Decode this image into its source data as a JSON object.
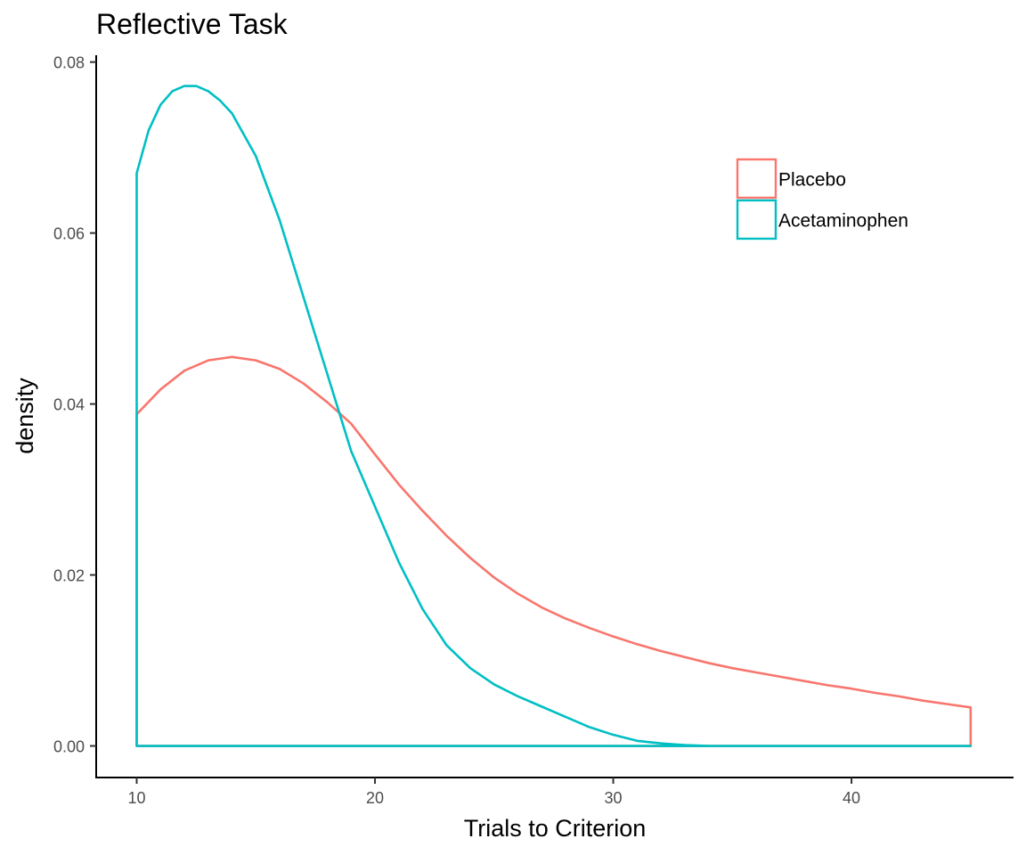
{
  "chart_data": {
    "type": "area",
    "subtype": "density",
    "title": "Reflective Task",
    "xlabel": "Trials to Criterion",
    "ylabel": "density",
    "xlim": [
      8.3,
      46.8
    ],
    "ylim": [
      -0.0038,
      0.0808
    ],
    "x_ticks": [
      10,
      20,
      30,
      40
    ],
    "y_ticks": [
      0.0,
      0.02,
      0.04,
      0.06,
      0.08
    ],
    "y_tick_labels": [
      "0.00",
      "0.02",
      "0.04",
      "0.06",
      "0.08"
    ],
    "grid": false,
    "legend_position": "top-right",
    "fill": "none",
    "series": [
      {
        "name": "Placebo",
        "color": "#F8766D",
        "x": [
          10,
          11,
          12,
          13,
          14,
          15,
          16,
          17,
          18,
          19,
          20,
          21,
          22,
          23,
          24,
          25,
          26,
          27,
          28,
          29,
          30,
          31,
          32,
          33,
          34,
          35,
          36,
          37,
          38,
          39,
          40,
          41,
          42,
          43,
          44,
          45
        ],
        "y": [
          0.0388,
          0.0417,
          0.0439,
          0.0451,
          0.0455,
          0.0451,
          0.0441,
          0.0424,
          0.0402,
          0.0377,
          0.0341,
          0.0306,
          0.0275,
          0.0246,
          0.022,
          0.0197,
          0.0178,
          0.0162,
          0.0149,
          0.0138,
          0.0128,
          0.0119,
          0.0111,
          0.0104,
          0.0097,
          0.0091,
          0.0086,
          0.0081,
          0.0076,
          0.0071,
          0.0067,
          0.0062,
          0.0058,
          0.0053,
          0.0049,
          0.0045
        ]
      },
      {
        "name": "Acetaminophen",
        "color": "#00BFC4",
        "x": [
          10,
          10.5,
          11,
          11.5,
          12,
          12.5,
          13,
          13.5,
          14,
          15,
          16,
          17,
          18,
          19,
          20,
          21,
          22,
          23,
          24,
          25,
          26,
          27,
          28,
          29,
          30,
          31,
          32,
          33,
          34,
          35,
          36,
          37,
          38,
          39,
          40,
          41,
          42,
          43,
          44,
          45
        ],
        "y": [
          0.067,
          0.072,
          0.075,
          0.0766,
          0.0772,
          0.0772,
          0.0766,
          0.0755,
          0.074,
          0.069,
          0.0615,
          0.0525,
          0.0435,
          0.0345,
          0.028,
          0.0215,
          0.016,
          0.0118,
          0.0091,
          0.0072,
          0.0058,
          0.0046,
          0.0034,
          0.0022,
          0.0013,
          0.0006,
          0.0003,
          0.0001,
          0.0,
          0.0,
          0.0,
          0.0,
          0.0,
          0.0,
          0.0,
          0.0,
          0.0,
          0.0,
          0.0,
          0.0
        ]
      }
    ]
  }
}
